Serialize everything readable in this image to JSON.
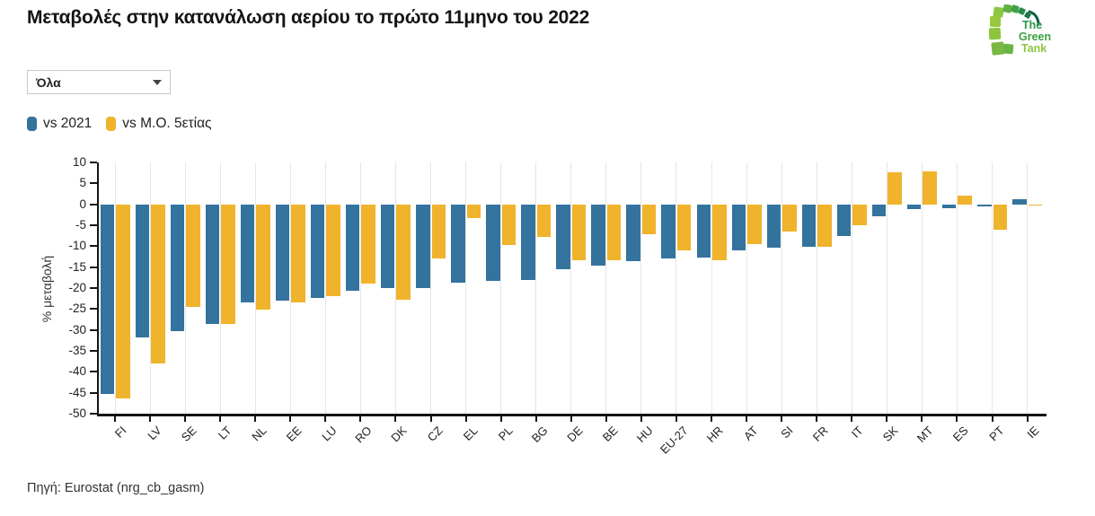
{
  "title": "Μεταβολές στην κατανάλωση αερίου το πρώτο 11μηνο του 2022",
  "filter": {
    "value": "Όλα"
  },
  "legend": {
    "items": [
      {
        "label": "vs 2021"
      },
      {
        "label": "vs Μ.Ο. 5ετίας"
      }
    ]
  },
  "logo": {
    "line1": "The",
    "line2": "Green",
    "line3": "Tank"
  },
  "footer": {
    "source": "Πηγή: Eurostat (nrg_cb_gasm)"
  },
  "chart_data": {
    "type": "bar",
    "title": "Μεταβολές στην κατανάλωση αερίου το πρώτο 11μηνο του 2022",
    "categories": [
      "FI",
      "LV",
      "SE",
      "LT",
      "NL",
      "EE",
      "LU",
      "RO",
      "DK",
      "CZ",
      "EL",
      "PL",
      "BG",
      "DE",
      "BE",
      "HU",
      "EU-27",
      "HR",
      "AT",
      "SI",
      "FR",
      "IT",
      "SK",
      "MT",
      "ES",
      "PT",
      "IE"
    ],
    "series": [
      {
        "name": "vs 2021",
        "color": "#33739e",
        "values": [
          -45.3,
          -31.7,
          -30.3,
          -28.6,
          -23.4,
          -23.1,
          -22.4,
          -20.6,
          -20.1,
          -19.9,
          -18.8,
          -18.3,
          -18.1,
          -15.6,
          -14.6,
          -13.6,
          -12.9,
          -12.8,
          -11.0,
          -10.4,
          -10.1,
          -7.5,
          -2.9,
          -1.2,
          -0.9,
          -0.6,
          1.2
        ]
      },
      {
        "name": "vs Μ.Ο. 5ετίας",
        "color": "#f0b32c",
        "values": [
          -46.3,
          -38.1,
          -24.4,
          -28.5,
          -25.2,
          -23.5,
          -21.9,
          -19.0,
          -22.7,
          -12.9,
          -3.2,
          -9.7,
          -7.8,
          -13.4,
          -13.4,
          -7.2,
          -11.0,
          -13.3,
          -9.5,
          -6.5,
          -10.2,
          -5.0,
          7.7,
          7.9,
          2.0,
          -6.1,
          -0.3
        ]
      }
    ],
    "xlabel": "",
    "ylabel": "% μεταβολή",
    "ylim": [
      -50,
      10
    ],
    "yticks": [
      10,
      5,
      0,
      -5,
      -10,
      -15,
      -20,
      -25,
      -30,
      -35,
      -40,
      -45,
      -50
    ],
    "grid": "vertical",
    "legend_position": "top-left"
  }
}
